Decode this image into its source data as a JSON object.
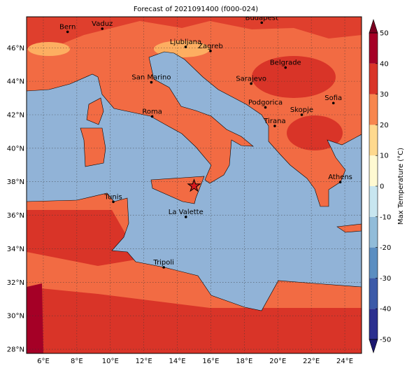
{
  "title": "Forecast of 2021091400 (f000-024)",
  "map": {
    "lon_range": [
      5,
      25
    ],
    "lat_range": [
      27.75,
      47.85
    ],
    "xticks": [
      {
        "value": 6,
        "label": "6°E"
      },
      {
        "value": 8,
        "label": "8°E"
      },
      {
        "value": 10,
        "label": "10°E"
      },
      {
        "value": 12,
        "label": "12°E"
      },
      {
        "value": 14,
        "label": "14°E"
      },
      {
        "value": 16,
        "label": "16°E"
      },
      {
        "value": 18,
        "label": "18°E"
      },
      {
        "value": 20,
        "label": "20°E"
      },
      {
        "value": 22,
        "label": "22°E"
      },
      {
        "value": 24,
        "label": "24°E"
      }
    ],
    "yticks": [
      {
        "value": 28,
        "label": "28°N"
      },
      {
        "value": 30,
        "label": "30°N"
      },
      {
        "value": 32,
        "label": "32°N"
      },
      {
        "value": 34,
        "label": "34°N"
      },
      {
        "value": 36,
        "label": "36°N"
      },
      {
        "value": 38,
        "label": "38°N"
      },
      {
        "value": 40,
        "label": "40°N"
      },
      {
        "value": 42,
        "label": "42°N"
      },
      {
        "value": 44,
        "label": "44°N"
      },
      {
        "value": 46,
        "label": "46°N"
      }
    ]
  },
  "cities": [
    {
      "name": "Bern",
      "lon": 7.45,
      "lat": 46.95
    },
    {
      "name": "Vaduz",
      "lon": 9.52,
      "lat": 47.14
    },
    {
      "name": "Budapest",
      "lon": 19.04,
      "lat": 47.5
    },
    {
      "name": "Ljubljana",
      "lon": 14.5,
      "lat": 46.05
    },
    {
      "name": "Zagreb",
      "lon": 15.98,
      "lat": 45.81
    },
    {
      "name": "Belgrade",
      "lon": 20.46,
      "lat": 44.82
    },
    {
      "name": "San Marino",
      "lon": 12.45,
      "lat": 43.94
    },
    {
      "name": "Sarajevo",
      "lon": 18.41,
      "lat": 43.86
    },
    {
      "name": "Sofia",
      "lon": 23.32,
      "lat": 42.7
    },
    {
      "name": "Podgorica",
      "lon": 19.26,
      "lat": 42.44
    },
    {
      "name": "Skopje",
      "lon": 21.43,
      "lat": 42.0
    },
    {
      "name": "Roma",
      "lon": 12.5,
      "lat": 41.9
    },
    {
      "name": "Tirana",
      "lon": 19.82,
      "lat": 41.33
    },
    {
      "name": "Athens",
      "lon": 23.73,
      "lat": 37.98
    },
    {
      "name": "Tunis",
      "lon": 10.18,
      "lat": 36.8
    },
    {
      "name": "La Valette",
      "lon": 14.51,
      "lat": 35.9
    },
    {
      "name": "Tripoli",
      "lon": 13.19,
      "lat": 32.89
    }
  ],
  "star": {
    "lon": 15.0,
    "lat": 37.75
  },
  "colorbar": {
    "label": "Max Temperature (°C)",
    "ticks": [
      -50,
      -40,
      -30,
      -20,
      -10,
      0,
      10,
      20,
      30,
      40,
      50
    ],
    "colors": [
      "#2b2f8f",
      "#3c5aa8",
      "#5b8ec1",
      "#91bcd9",
      "#c8e6f0",
      "#fffad2",
      "#fed98e",
      "#f7864e",
      "#d93428",
      "#a50026"
    ],
    "extend_colors": [
      "#1c1870",
      "#7a0020"
    ]
  }
}
